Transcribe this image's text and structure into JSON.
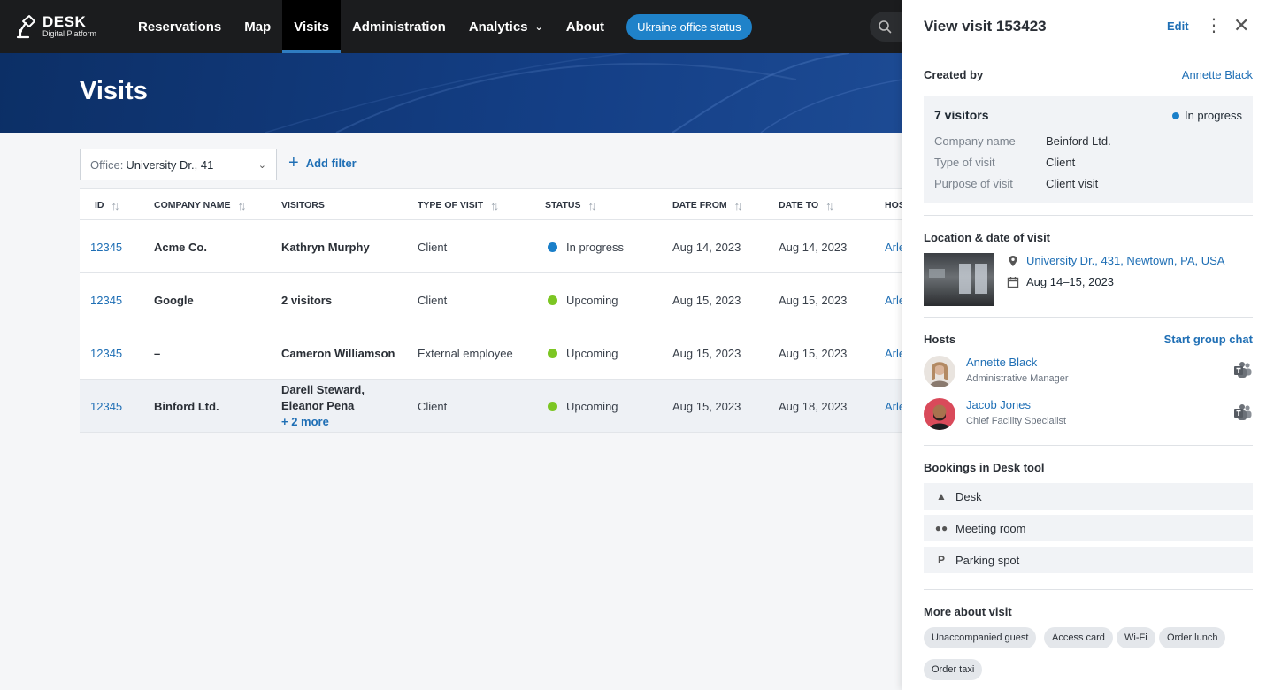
{
  "nav": {
    "logo_title": "DESK",
    "logo_subtitle": "Digital Platform",
    "items": [
      "Reservations",
      "Map",
      "Visits",
      "Administration",
      "Analytics",
      "About"
    ],
    "status_button": "Ukraine office status"
  },
  "page": {
    "title": "Visits"
  },
  "filters": {
    "office_label": "Office:",
    "office_value": "University Dr., 41",
    "add_filter": "Add filter"
  },
  "table": {
    "headers": [
      "ID",
      "Company name",
      "Visitors",
      "Type of visit",
      "Status",
      "Date from",
      "Date to",
      "Hos"
    ],
    "rows": [
      {
        "id": "12345",
        "company": "Acme Co.",
        "visitors": "Kathryn Murphy",
        "visitors2": "",
        "more": "",
        "type": "Client",
        "status": "In progress",
        "status_color": "#1a7fc9",
        "from": "Aug 14, 2023",
        "to": "Aug 14, 2023",
        "host": "Arle"
      },
      {
        "id": "12345",
        "company": "Google",
        "visitors": "2 visitors",
        "visitors2": "",
        "more": "",
        "type": "Client",
        "status": "Upcoming",
        "status_color": "#7cc623",
        "from": "Aug 15, 2023",
        "to": "Aug 15, 2023",
        "host": "Arle"
      },
      {
        "id": "12345",
        "company": "–",
        "visitors": "Cameron Williamson",
        "visitors2": "",
        "more": "",
        "type": "External employee",
        "status": "Upcoming",
        "status_color": "#7cc623",
        "from": "Aug 15, 2023",
        "to": "Aug 15, 2023",
        "host": "Arle"
      },
      {
        "id": "12345",
        "company": "Binford Ltd.",
        "visitors": "Darell Steward,",
        "visitors2": "Eleanor Pena",
        "more": "+ 2 more",
        "type": "Client",
        "status": "Upcoming",
        "status_color": "#7cc623",
        "from": "Aug 15, 2023",
        "to": "Aug 18, 2023",
        "host": "Arle"
      }
    ]
  },
  "panel": {
    "title": "View visit 153423",
    "edit": "Edit",
    "created_by_label": "Created by",
    "created_by": "Annette Black",
    "visitors_count": "7 visitors",
    "status": "In progress",
    "status_color": "#1a7fc9",
    "company_label": "Company name",
    "company": "Beinford Ltd.",
    "type_label": "Type of visit",
    "type": "Client",
    "purpose_label": "Purpose of visit",
    "purpose": "Client visit",
    "location_label": "Location & date of visit",
    "address": "University Dr., 431, Newtown, PA, USA",
    "dates": "Aug 14–15, 2023",
    "hosts_label": "Hosts",
    "group_chat": "Start group chat",
    "hosts": [
      {
        "name": "Annette Black",
        "role": "Administrative Manager"
      },
      {
        "name": "Jacob Jones",
        "role": "Chief Facility Specialist"
      }
    ],
    "bookings_label": "Bookings in Desk tool",
    "bookings": [
      "Desk",
      "Meeting room",
      "Parking spot"
    ],
    "more_label": "More about visit",
    "chips": [
      "Unaccompanied guest",
      "Access card",
      "Wi-Fi",
      "Order lunch",
      "Order taxi"
    ]
  }
}
